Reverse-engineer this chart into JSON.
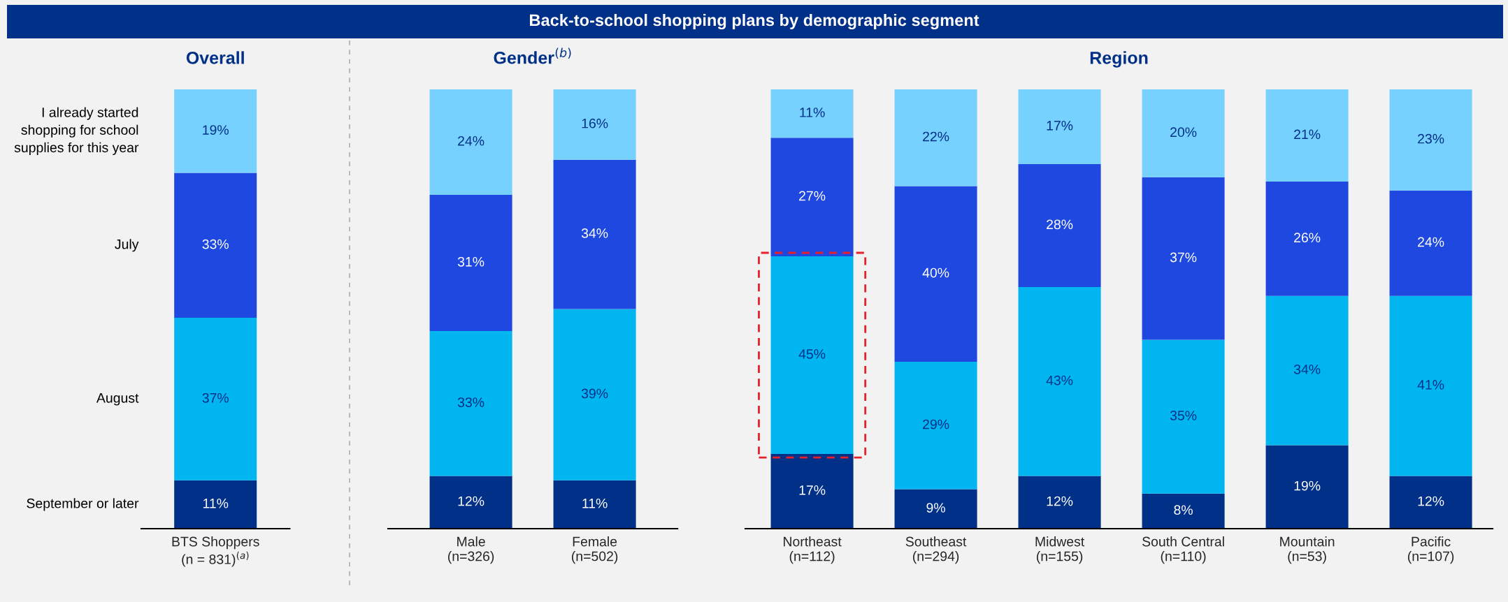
{
  "chart_data": [
    {
      "type": "bar",
      "title": "Overall",
      "annotations": [
        "Back-to-school shopping plans by demographic segment"
      ],
      "categories": [
        "BTS Shoppers\n(n = 831)$^{(a)}$"
      ],
      "stacked": true,
      "tick_labels": "x",
      "series": [
        {
          "name": "September or later",
          "color": "#003087",
          "values": [
            11
          ],
          "value_labels": [
            "11%"
          ]
        },
        {
          "name": "August",
          "color": "#00b5f0",
          "values": [
            37
          ],
          "value_labels": [
            "37%"
          ]
        },
        {
          "name": "July",
          "color": "#1f48e0",
          "values": [
            33
          ],
          "value_labels": [
            "33%"
          ]
        },
        {
          "name": "I already started\nshopping for school\nsupplies for this year",
          "color": "#77d1ff",
          "values": [
            19
          ],
          "value_labels": [
            "19%"
          ]
        }
      ]
    },
    {
      "type": "bar",
      "title": "Gender$^{(b)}$",
      "categories": [
        "Male\n(n=326)",
        "Female\n(n=502)"
      ],
      "stacked": true,
      "tick_labels": "x",
      "series": [
        {
          "color": "#003087",
          "values": [
            12,
            11
          ],
          "value_labels": [
            "12%",
            "11%"
          ]
        },
        {
          "color": "#00b5f0",
          "values": [
            33,
            39
          ],
          "value_labels": [
            "33%",
            "39%"
          ]
        },
        {
          "color": "#1f48e0",
          "values": [
            31,
            34
          ],
          "value_labels": [
            "31%",
            "34%"
          ]
        },
        {
          "color": "#77d1ff",
          "values": [
            24,
            16
          ],
          "value_labels": [
            "24%",
            "16%"
          ]
        }
      ]
    },
    {
      "type": "bar",
      "title": "Region",
      "categories": [
        "Northeast\n(n=112)",
        "Southeast\n(n=294)",
        "Midwest\n(n=155)",
        "South Central\n(n=110)",
        "Mountain\n(n=53)",
        "Pacific\n(n=107)"
      ],
      "stacked": true,
      "tick_labels": "x",
      "series": [
        {
          "color": "#003087",
          "values": [
            17,
            9,
            12,
            8,
            19,
            12
          ],
          "value_labels": [
            "17%",
            "9%",
            "12%",
            "8%",
            "19%",
            "12%"
          ]
        },
        {
          "color": "#00b5f0",
          "values": [
            45,
            29,
            43,
            35,
            34,
            41
          ],
          "value_labels": [
            "45%",
            "29%",
            "43%",
            "35%",
            "34%",
            "41%"
          ]
        },
        {
          "color": "#1f48e0",
          "values": [
            27,
            40,
            28,
            37,
            26,
            24
          ],
          "value_labels": [
            "27%",
            "40%",
            "28%",
            "37%",
            "26%",
            "24%"
          ]
        },
        {
          "color": "#77d1ff",
          "values": [
            11,
            22,
            17,
            20,
            21,
            23
          ],
          "value_labels": [
            "11%",
            "22%",
            "17%",
            "20%",
            "21%",
            "23%"
          ]
        }
      ]
    }
  ]
}
